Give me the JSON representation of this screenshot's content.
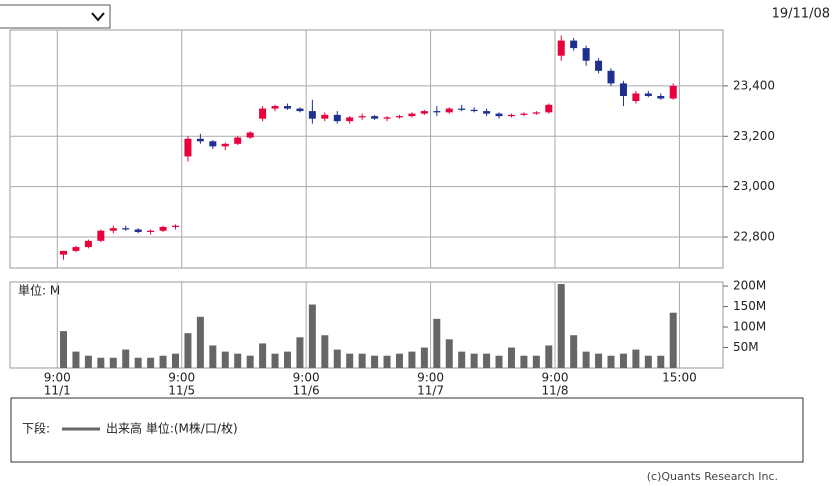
{
  "header": {
    "date": "19/11/08"
  },
  "chart_data": [
    {
      "type": "candlestick",
      "open": [
        22730,
        22745,
        22760,
        22785,
        22825,
        22835,
        22830,
        22820,
        22825,
        22840,
        23120,
        23190,
        23180,
        23160,
        23170,
        23195,
        23270,
        23310,
        23320,
        23310,
        23300,
        23270,
        23285,
        23260,
        23275,
        23280,
        23270,
        23275,
        23280,
        23290,
        23300,
        23295,
        23310,
        23305,
        23300,
        23290,
        23280,
        23285,
        23290,
        23295,
        23520,
        23580,
        23550,
        23500,
        23460,
        23410,
        23340,
        23370,
        23360,
        23350
      ],
      "high": [
        22745,
        22765,
        22790,
        22830,
        22845,
        22845,
        22835,
        22830,
        22845,
        22850,
        23200,
        23210,
        23185,
        23175,
        23200,
        23220,
        23320,
        23325,
        23330,
        23315,
        23345,
        23295,
        23300,
        23280,
        23290,
        23285,
        23280,
        23285,
        23295,
        23305,
        23320,
        23315,
        23325,
        23315,
        23310,
        23295,
        23290,
        23295,
        23300,
        23330,
        23600,
        23590,
        23560,
        23510,
        23470,
        23420,
        23380,
        23380,
        23370,
        23410
      ],
      "low": [
        22710,
        22740,
        22755,
        22780,
        22815,
        22825,
        22815,
        22810,
        22820,
        22830,
        23100,
        23170,
        23150,
        23145,
        23165,
        23190,
        23260,
        23300,
        23305,
        23295,
        23250,
        23260,
        23250,
        23250,
        23265,
        23265,
        23260,
        23270,
        23275,
        23285,
        23280,
        23290,
        23300,
        23295,
        23280,
        23270,
        23275,
        23280,
        23285,
        23290,
        23500,
        23540,
        23480,
        23450,
        23400,
        23320,
        23330,
        23355,
        23345,
        23345
      ],
      "close": [
        22745,
        22760,
        22785,
        22825,
        22835,
        22830,
        22820,
        22825,
        22840,
        22845,
        23190,
        23180,
        23160,
        23170,
        23195,
        23215,
        23310,
        23320,
        23310,
        23300,
        23270,
        23285,
        23260,
        23275,
        23280,
        23270,
        23275,
        23280,
        23290,
        23300,
        23295,
        23310,
        23305,
        23300,
        23290,
        23280,
        23285,
        23290,
        23295,
        23325,
        23580,
        23550,
        23500,
        23460,
        23410,
        23360,
        23370,
        23360,
        23350,
        23400
      ],
      "colors": {
        "up": "#e8003c",
        "down": "#1f2f8f"
      },
      "xlim": [
        -3.8,
        53.5
      ],
      "xticks": [
        {
          "value": 0,
          "label": [
            "9:00",
            "11/1"
          ]
        },
        {
          "value": 10,
          "label": [
            "9:00",
            "11/5"
          ]
        },
        {
          "value": 20,
          "label": [
            "9:00",
            "11/6"
          ]
        },
        {
          "value": 30,
          "label": [
            "9:00",
            "11/7"
          ]
        },
        {
          "value": 40,
          "label": [
            "9:00",
            "11/8"
          ]
        },
        {
          "value": 50,
          "label": [
            "15:00"
          ]
        }
      ],
      "ylim": [
        22677,
        23622
      ],
      "yticks": [
        {
          "value": 22800,
          "label": "22,800"
        },
        {
          "value": 23000,
          "label": "23,000"
        },
        {
          "value": 23200,
          "label": "23,200"
        },
        {
          "value": 23400,
          "label": "23,400"
        }
      ],
      "grid": true
    },
    {
      "type": "bar",
      "unit_label": "単位: M",
      "values": [
        90,
        40,
        30,
        25,
        25,
        45,
        25,
        25,
        30,
        35,
        85,
        125,
        55,
        40,
        35,
        30,
        60,
        35,
        40,
        75,
        155,
        80,
        45,
        35,
        35,
        30,
        30,
        35,
        40,
        50,
        120,
        70,
        40,
        35,
        35,
        30,
        50,
        30,
        30,
        55,
        205,
        80,
        40,
        35,
        30,
        35,
        45,
        30,
        30,
        135
      ],
      "color": "#666666",
      "ylim": [
        0,
        210
      ],
      "yticks": [
        {
          "value": 50,
          "label": "50M"
        },
        {
          "value": 100,
          "label": "100M"
        },
        {
          "value": 150,
          "label": "150M"
        },
        {
          "value": 200,
          "label": "200M"
        }
      ]
    }
  ],
  "legend": {
    "prefix": "下段:",
    "label": "出来高 単位:(M株/口/枚)"
  },
  "footer": {
    "copyright": "(c)Quants Research Inc."
  }
}
